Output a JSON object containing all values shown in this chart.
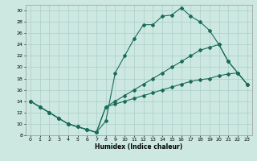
{
  "xlabel": "Humidex (Indice chaleur)",
  "bg_color": "#cce8e0",
  "grid_color": "#aacfc8",
  "line_color": "#1a6b5a",
  "xlim_min": -0.5,
  "xlim_max": 23.5,
  "ylim_min": 8,
  "ylim_max": 31,
  "xticks": [
    0,
    1,
    2,
    3,
    4,
    5,
    6,
    7,
    8,
    9,
    10,
    11,
    12,
    13,
    14,
    15,
    16,
    17,
    18,
    19,
    20,
    21,
    22,
    23
  ],
  "yticks": [
    8,
    10,
    12,
    14,
    16,
    18,
    20,
    22,
    24,
    26,
    28,
    30
  ],
  "line1_x": [
    0,
    1,
    2,
    3,
    4,
    5,
    6,
    7,
    8,
    9,
    10,
    11,
    12,
    13,
    14,
    15,
    16,
    17,
    18,
    19,
    20,
    21,
    22,
    23
  ],
  "line1_y": [
    14,
    13,
    12,
    11,
    10,
    9.5,
    9,
    8.5,
    10.5,
    19,
    22,
    25,
    27.5,
    27.5,
    29,
    29.2,
    30.5,
    29,
    28,
    26.5,
    24,
    21,
    19,
    17
  ],
  "line2_x": [
    0,
    1,
    2,
    3,
    4,
    5,
    6,
    7,
    8,
    9,
    10,
    11,
    12,
    13,
    14,
    15,
    16,
    17,
    18,
    19,
    20,
    21,
    22,
    23
  ],
  "line2_y": [
    14,
    13,
    12,
    11,
    10,
    9.5,
    9,
    8.5,
    13,
    14,
    15,
    16,
    17,
    18,
    19,
    20,
    21,
    22,
    23,
    23.5,
    24,
    21,
    19,
    17
  ],
  "line3_x": [
    0,
    1,
    2,
    3,
    4,
    5,
    6,
    7,
    8,
    9,
    10,
    11,
    12,
    13,
    14,
    15,
    16,
    17,
    18,
    19,
    20,
    21,
    22,
    23
  ],
  "line3_y": [
    14,
    13,
    12,
    11,
    10,
    9.5,
    9,
    8.5,
    13,
    13.5,
    14,
    14.5,
    15,
    15.5,
    16,
    16.5,
    17,
    17.5,
    17.8,
    18,
    18.5,
    18.8,
    19,
    17
  ]
}
